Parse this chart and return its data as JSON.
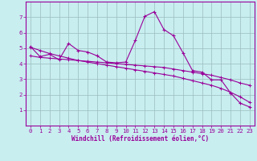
{
  "x": [
    0,
    1,
    2,
    3,
    4,
    5,
    6,
    7,
    8,
    9,
    10,
    11,
    12,
    13,
    14,
    15,
    16,
    17,
    18,
    19,
    20,
    21,
    22,
    23
  ],
  "y_main": [
    5.1,
    4.45,
    4.6,
    4.25,
    5.3,
    4.85,
    4.75,
    4.5,
    4.1,
    4.05,
    4.1,
    5.5,
    7.05,
    7.35,
    6.2,
    5.8,
    4.7,
    3.55,
    3.45,
    2.95,
    2.95,
    2.1,
    1.45,
    1.2
  ],
  "y_trend1": [
    4.5,
    4.4,
    4.35,
    4.3,
    4.25,
    4.2,
    4.15,
    4.1,
    4.05,
    4.0,
    3.95,
    3.9,
    3.85,
    3.8,
    3.75,
    3.65,
    3.55,
    3.45,
    3.35,
    3.25,
    3.1,
    2.95,
    2.75,
    2.6
  ],
  "y_trend2": [
    5.05,
    4.85,
    4.65,
    4.5,
    4.35,
    4.2,
    4.1,
    4.0,
    3.9,
    3.8,
    3.7,
    3.6,
    3.5,
    3.4,
    3.3,
    3.2,
    3.05,
    2.9,
    2.75,
    2.6,
    2.4,
    2.15,
    1.85,
    1.5
  ],
  "line_color": "#990099",
  "bg_color": "#c8eef0",
  "grid_color": "#9bbcbe",
  "axis_color": "#990099",
  "xlabel": "Windchill (Refroidissement éolien,°C)",
  "ylim": [
    0,
    8
  ],
  "xlim": [
    -0.5,
    23.5
  ],
  "yticks": [
    1,
    2,
    3,
    4,
    5,
    6,
    7
  ],
  "xticks": [
    0,
    1,
    2,
    3,
    4,
    5,
    6,
    7,
    8,
    9,
    10,
    11,
    12,
    13,
    14,
    15,
    16,
    17,
    18,
    19,
    20,
    21,
    22,
    23
  ]
}
